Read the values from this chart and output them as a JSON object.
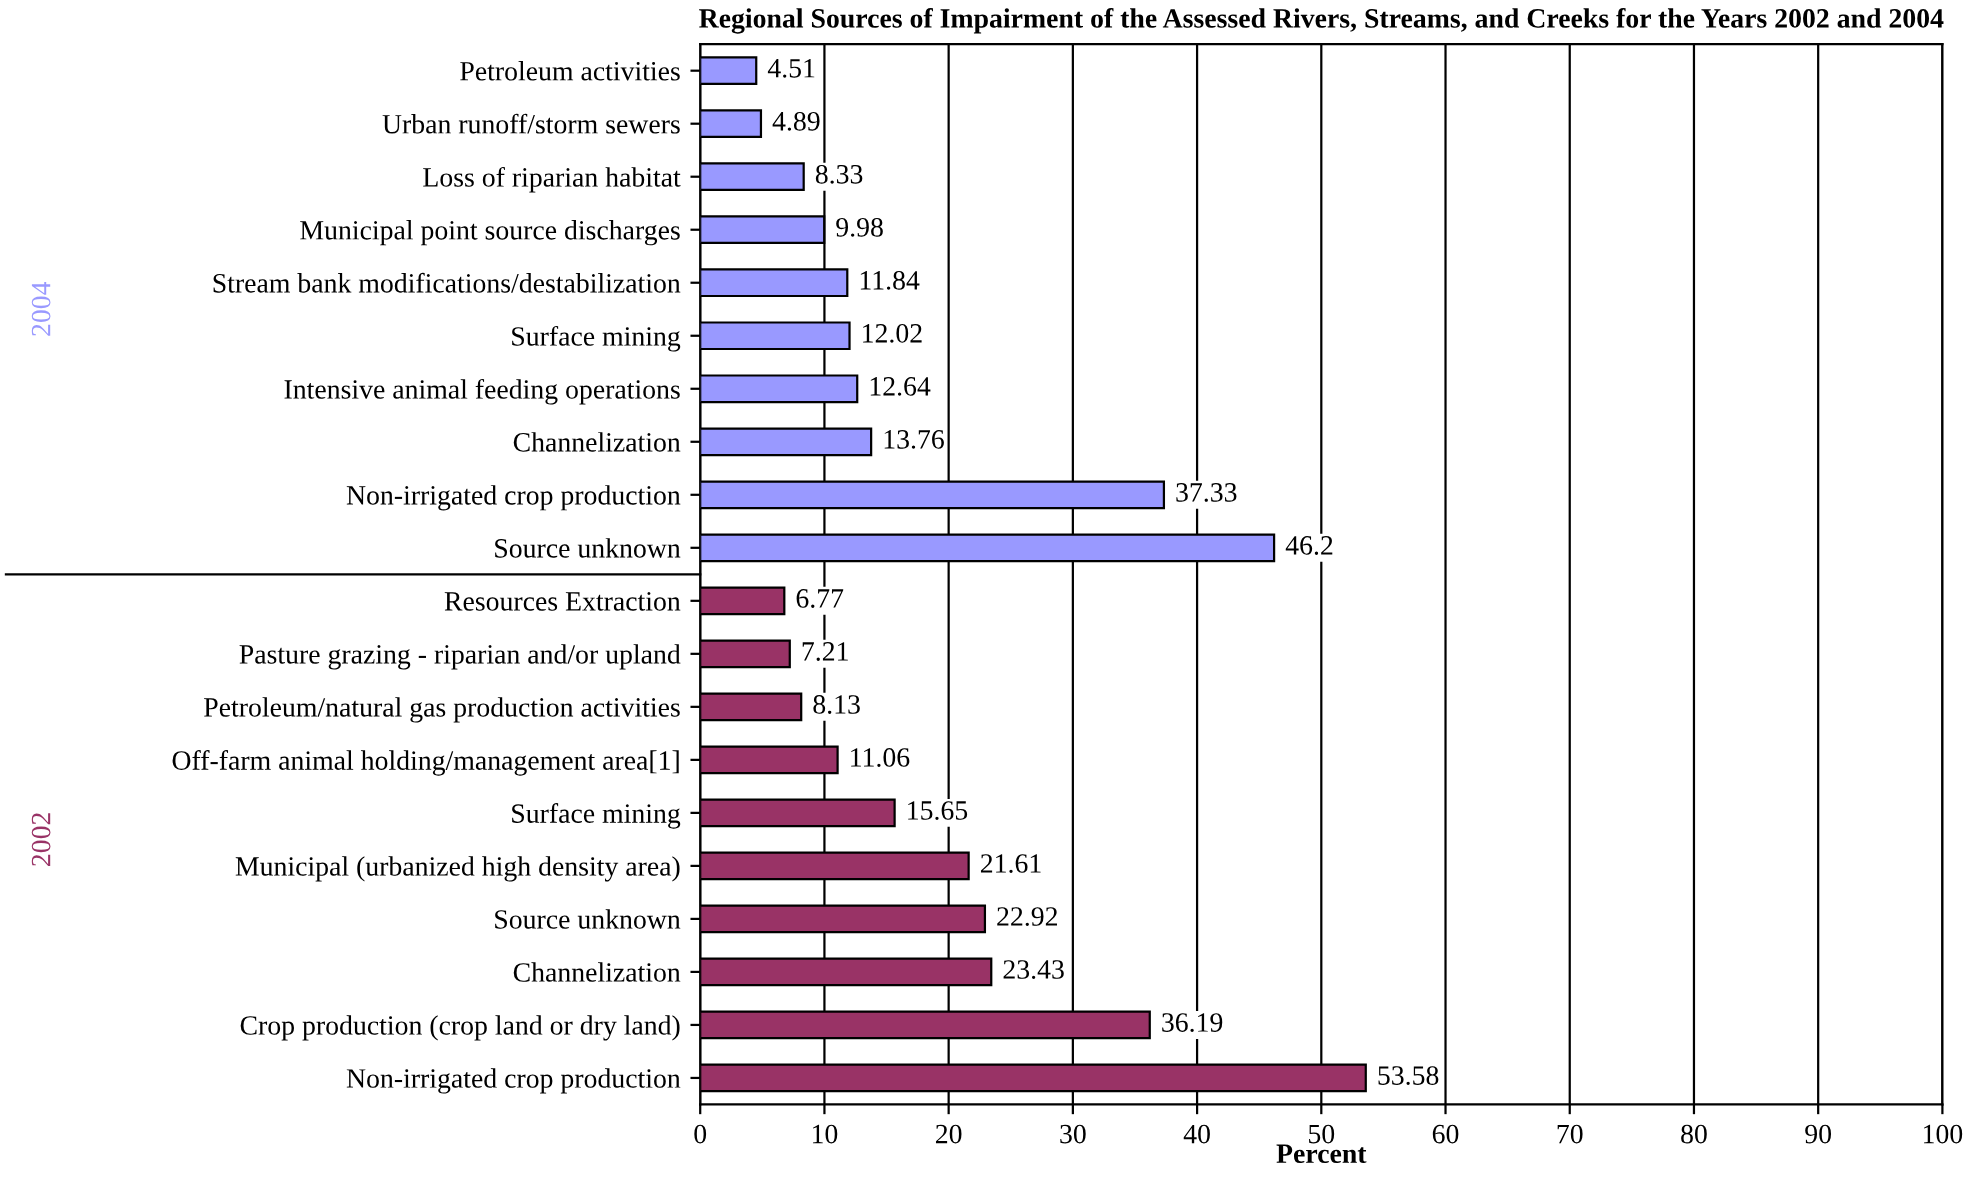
{
  "chart_data": {
    "type": "bar",
    "orientation": "horizontal",
    "title": "Regional Sources of Impairment of the Assessed Rivers, Streams, and Creeks for the Years 2002 and 2004",
    "xlabel": "Percent",
    "categories": [
      "Petroleum activities",
      "Urban runoff/storm sewers",
      "Loss of riparian habitat",
      "Municipal point source discharges",
      "Stream bank modifications/destabilization",
      "Surface mining",
      "Intensive animal feeding operations",
      "Channelization",
      "Non-irrigated crop production",
      "Source unknown",
      "Resources Extraction",
      "Pasture grazing - riparian and/or upland",
      "Petroleum/natural gas production activities",
      "Off-farm animal holding/management area[1]",
      "Surface mining",
      "Municipal (urbanized high density area)",
      "Source unknown",
      "Channelization",
      "Crop production (crop land or dry land)",
      "Non-irrigated crop production"
    ],
    "series": [
      {
        "name": "2004",
        "color": "#9999ff",
        "values": [
          4.51,
          4.89,
          8.33,
          9.98,
          11.84,
          12.02,
          12.64,
          13.76,
          37.33,
          46.2,
          null,
          null,
          null,
          null,
          null,
          null,
          null,
          null,
          null,
          null
        ]
      },
      {
        "name": "2002",
        "color": "#993366",
        "values": [
          null,
          null,
          null,
          null,
          null,
          null,
          null,
          null,
          null,
          null,
          6.77,
          7.21,
          8.13,
          11.06,
          15.65,
          21.61,
          22.92,
          23.43,
          36.19,
          53.58
        ]
      }
    ],
    "xlim": [
      0,
      100
    ],
    "xticks": [
      0,
      10,
      20,
      30,
      40,
      50,
      60,
      70,
      80,
      90,
      100
    ],
    "grid": "x",
    "legend": false,
    "data_labels": true
  }
}
